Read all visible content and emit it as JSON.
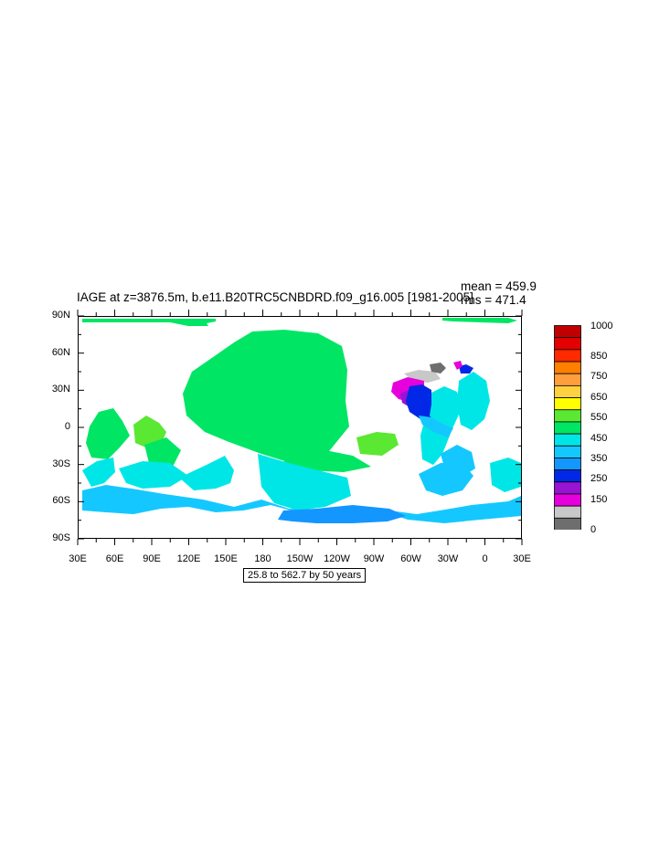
{
  "title": "IAGE at z=3876.5m, b.e11.B20TRC5CNBDRD.f09_g16.005 [1981-2005]",
  "stats": {
    "mean": "mean = 459.9",
    "rms": "rms = 471.4"
  },
  "lat_labels": [
    "90N",
    "60N",
    "30N",
    "0",
    "30S",
    "60S",
    "90S"
  ],
  "lon_labels": [
    "30E",
    "60E",
    "90E",
    "120E",
    "150E",
    "180",
    "150W",
    "120W",
    "90W",
    "60W",
    "30W",
    "0",
    "30E"
  ],
  "contour_info": "25.8 to 562.7 by 50 years",
  "colorbar": {
    "labels": [
      "1000",
      "850",
      "750",
      "650",
      "550",
      "450",
      "350",
      "250",
      "150",
      "0"
    ],
    "colors": [
      "#c00000",
      "#e40000",
      "#ff2a00",
      "#ff7f00",
      "#ff9e3c",
      "#ffd040",
      "#ffff00",
      "#5ae832",
      "#00e664",
      "#00e6e6",
      "#14c8ff",
      "#1496ff",
      "#0028e6",
      "#9614d2",
      "#e600dc",
      "#c8c8c8",
      "#6e6e6e"
    ]
  },
  "map_colors": {
    "green": "#00e664",
    "lightgreen": "#5ae832",
    "cyan": "#00e6e6",
    "skyblue": "#14c8ff",
    "blue": "#1496ff",
    "darkblue": "#0028e6",
    "purple": "#9614d2",
    "magenta": "#e600dc",
    "lightgray": "#c8c8c8",
    "gray": "#6e6e6e"
  }
}
